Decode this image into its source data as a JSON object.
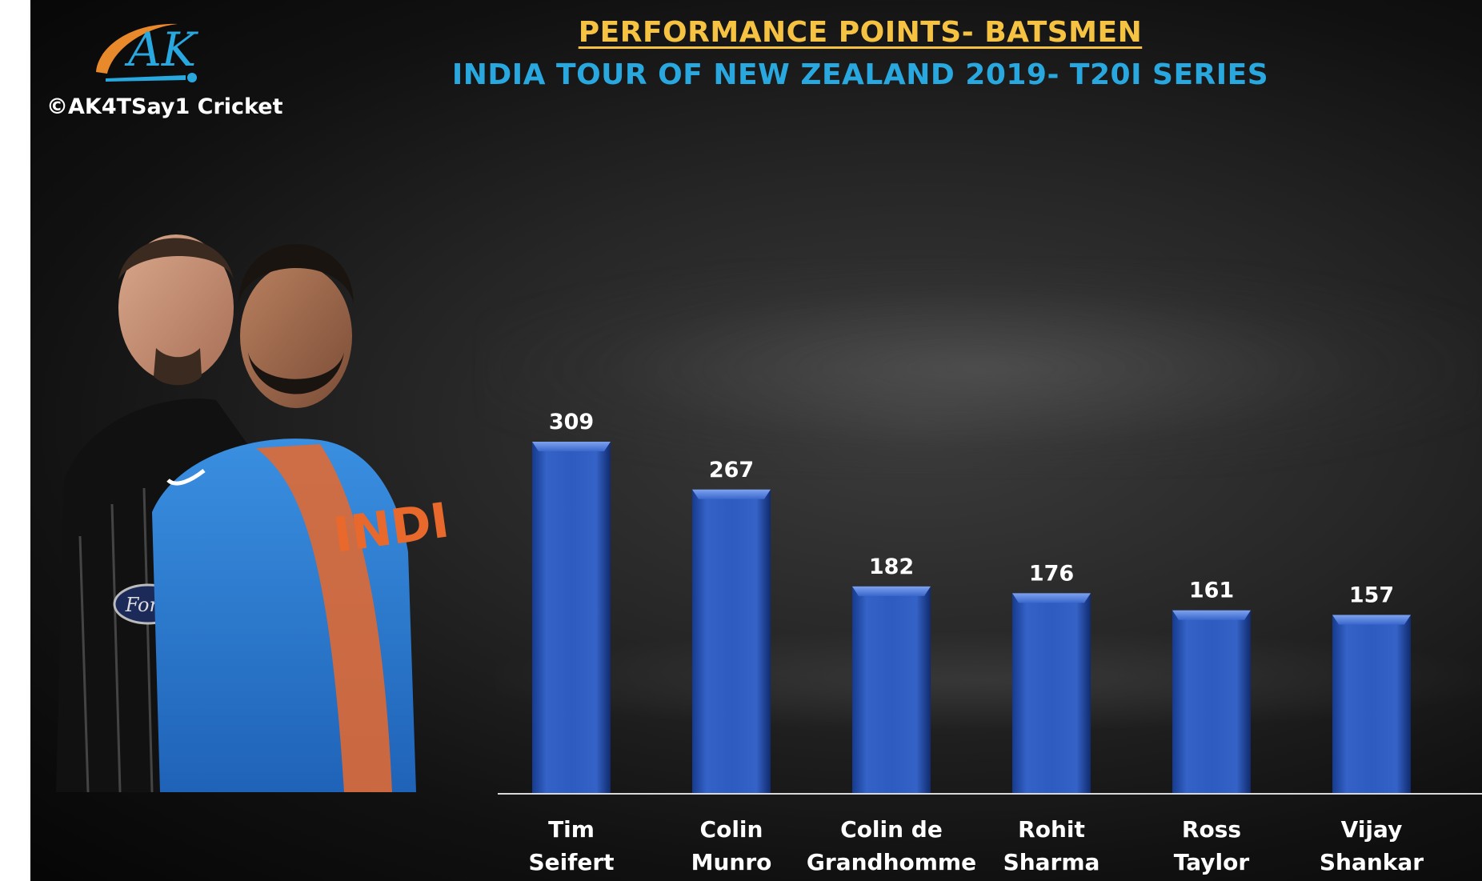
{
  "header": {
    "title": "PERFORMANCE POINTS- BATSMEN",
    "subtitle": "INDIA TOUR OF NEW ZEALAND 2019- T20I SERIES"
  },
  "branding": {
    "logo_text": "AK",
    "copyright": "©AK4TSay1 Cricket",
    "logo_color": "#29a8e0",
    "swoosh_color": "#e8892b"
  },
  "colors": {
    "title": "#f5c242",
    "subtitle": "#29a8e0",
    "bar": "#2a56b8",
    "bar_light": "#5b86e0",
    "bar_dark": "#123077",
    "text": "#ffffff"
  },
  "chart_data": {
    "type": "bar",
    "title": "PERFORMANCE POINTS- BATSMEN",
    "subtitle": "INDIA TOUR OF NEW ZEALAND 2019- T20I SERIES",
    "categories": [
      [
        "Tim",
        "Seifert"
      ],
      [
        "Colin",
        "Munro"
      ],
      [
        "Colin de",
        "Grandhomme"
      ],
      [
        "Rohit",
        "Sharma"
      ],
      [
        "Ross",
        "Taylor"
      ],
      [
        "Vijay",
        "Shankar"
      ]
    ],
    "values": [
      309,
      267,
      182,
      176,
      161,
      157
    ],
    "data_labels": [
      "309",
      "267",
      "182",
      "176",
      "161",
      "157"
    ],
    "xlabel": "",
    "ylabel": "",
    "ylim": [
      0,
      309
    ],
    "grid": false,
    "legend": "none"
  }
}
